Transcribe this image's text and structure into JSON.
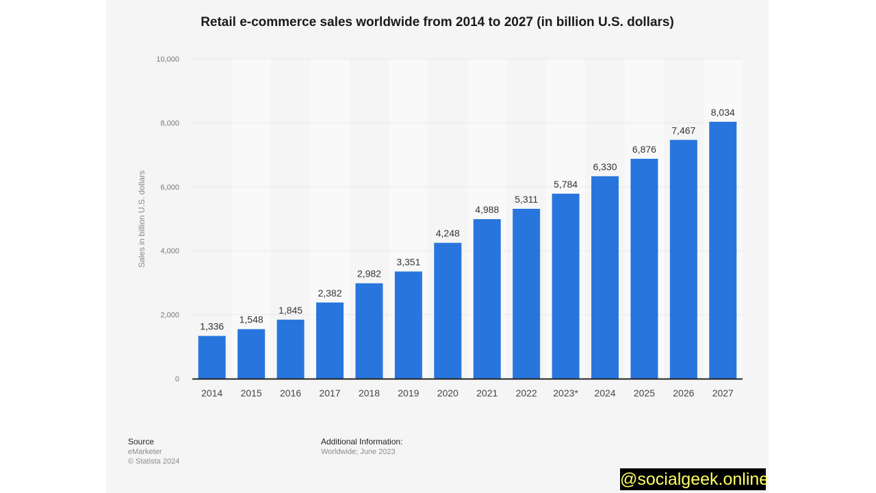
{
  "chart_data": {
    "type": "bar",
    "title": "Retail e-commerce sales worldwide from 2014 to 2027 (in billion U.S. dollars)",
    "xlabel": "",
    "ylabel": "Sales in billion U.S. dollars",
    "ylim": [
      0,
      10000
    ],
    "yticks": [
      0,
      2000,
      4000,
      6000,
      8000,
      10000
    ],
    "ytick_labels": [
      "0",
      "2,000",
      "4,000",
      "6,000",
      "8,000",
      "10,000"
    ],
    "grid": true,
    "categories": [
      "2014",
      "2015",
      "2016",
      "2017",
      "2018",
      "2019",
      "2020",
      "2021",
      "2022",
      "2023*",
      "2024",
      "2025",
      "2026",
      "2027"
    ],
    "values": [
      1336,
      1548,
      1845,
      2382,
      2982,
      3351,
      4248,
      4988,
      5311,
      5784,
      6330,
      6876,
      7467,
      8034
    ],
    "data_labels": [
      "1,336",
      "1,548",
      "1,845",
      "2,382",
      "2,982",
      "3,351",
      "4,248",
      "4,988",
      "5,311",
      "5,784",
      "6,330",
      "6,876",
      "7,467",
      "8,034"
    ],
    "bar_color": "#2876dd"
  },
  "footer": {
    "source_label": "Source",
    "source_value": "eMarketer",
    "copyright": "© Statista 2024",
    "additional_label": "Additional Information:",
    "additional_value": "Worldwide; June 2023"
  },
  "watermark": "@socialgeek.online"
}
